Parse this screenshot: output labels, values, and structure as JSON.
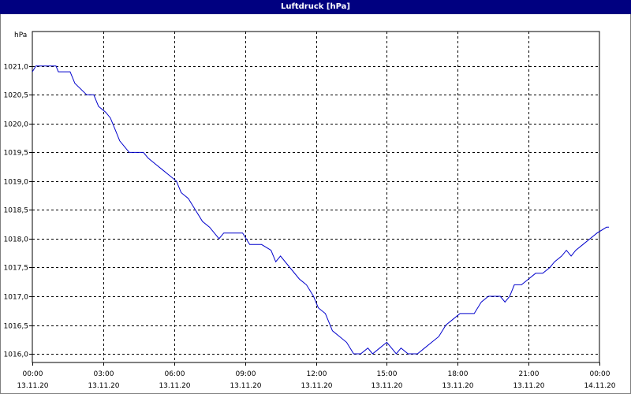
{
  "window": {
    "title": "Luftdruck [hPa]"
  },
  "chart_data": {
    "type": "line",
    "title": "Luftdruck [hPa]",
    "ylabel": "hPa",
    "xlabel": "",
    "ylim": [
      1015.85,
      1021.6
    ],
    "xlim": [
      0,
      24
    ],
    "grid": true,
    "y_ticks": [
      {
        "value": 1016.0,
        "label": "1016,0"
      },
      {
        "value": 1016.5,
        "label": "1016,5"
      },
      {
        "value": 1017.0,
        "label": "1017,0"
      },
      {
        "value": 1017.5,
        "label": "1017,5"
      },
      {
        "value": 1018.0,
        "label": "1018,0"
      },
      {
        "value": 1018.5,
        "label": "1018,5"
      },
      {
        "value": 1019.0,
        "label": "1019,0"
      },
      {
        "value": 1019.5,
        "label": "1019,5"
      },
      {
        "value": 1020.0,
        "label": "1020,0"
      },
      {
        "value": 1020.5,
        "label": "1020,5"
      },
      {
        "value": 1021.0,
        "label": "1021,0"
      }
    ],
    "x_ticks": [
      {
        "value": 0,
        "time": "00:00",
        "date": "13.11.20"
      },
      {
        "value": 3,
        "time": "03:00",
        "date": "13.11.20"
      },
      {
        "value": 6,
        "time": "06:00",
        "date": "13.11.20"
      },
      {
        "value": 9,
        "time": "09:00",
        "date": "13.11.20"
      },
      {
        "value": 12,
        "time": "12:00",
        "date": "13.11.20"
      },
      {
        "value": 15,
        "time": "15:00",
        "date": "13.11.20"
      },
      {
        "value": 18,
        "time": "18:00",
        "date": "13.11.20"
      },
      {
        "value": 21,
        "time": "21:00",
        "date": "13.11.20"
      },
      {
        "value": 24,
        "time": "00:00",
        "date": "14.11.20"
      }
    ],
    "series": [
      {
        "color": "#0000cc",
        "points": [
          [
            0.0,
            1020.9
          ],
          [
            0.15,
            1021.0
          ],
          [
            1.0,
            1021.0
          ],
          [
            1.1,
            1020.9
          ],
          [
            1.6,
            1020.9
          ],
          [
            1.8,
            1020.7
          ],
          [
            2.3,
            1020.5
          ],
          [
            2.6,
            1020.5
          ],
          [
            2.8,
            1020.3
          ],
          [
            3.1,
            1020.2
          ],
          [
            3.3,
            1020.1
          ],
          [
            3.5,
            1019.9
          ],
          [
            3.7,
            1019.7
          ],
          [
            3.9,
            1019.6
          ],
          [
            4.1,
            1019.5
          ],
          [
            4.7,
            1019.5
          ],
          [
            4.9,
            1019.4
          ],
          [
            5.2,
            1019.3
          ],
          [
            5.5,
            1019.2
          ],
          [
            5.8,
            1019.1
          ],
          [
            6.1,
            1019.0
          ],
          [
            6.3,
            1018.8
          ],
          [
            6.6,
            1018.7
          ],
          [
            6.9,
            1018.5
          ],
          [
            7.2,
            1018.3
          ],
          [
            7.5,
            1018.2
          ],
          [
            7.9,
            1018.0
          ],
          [
            8.1,
            1018.1
          ],
          [
            8.9,
            1018.1
          ],
          [
            9.2,
            1017.9
          ],
          [
            9.7,
            1017.9
          ],
          [
            10.1,
            1017.8
          ],
          [
            10.3,
            1017.6
          ],
          [
            10.5,
            1017.7
          ],
          [
            10.9,
            1017.5
          ],
          [
            11.3,
            1017.3
          ],
          [
            11.6,
            1017.2
          ],
          [
            11.9,
            1017.0
          ],
          [
            12.1,
            1016.8
          ],
          [
            12.4,
            1016.7
          ],
          [
            12.7,
            1016.4
          ],
          [
            13.0,
            1016.3
          ],
          [
            13.3,
            1016.2
          ],
          [
            13.6,
            1016.0
          ],
          [
            13.9,
            1016.0
          ],
          [
            14.2,
            1016.1
          ],
          [
            14.4,
            1016.0
          ],
          [
            14.7,
            1016.1
          ],
          [
            15.0,
            1016.2
          ],
          [
            15.2,
            1016.1
          ],
          [
            15.4,
            1016.0
          ],
          [
            15.6,
            1016.1
          ],
          [
            15.9,
            1016.0
          ],
          [
            16.3,
            1016.0
          ],
          [
            16.6,
            1016.1
          ],
          [
            16.9,
            1016.2
          ],
          [
            17.2,
            1016.3
          ],
          [
            17.5,
            1016.5
          ],
          [
            17.8,
            1016.6
          ],
          [
            18.1,
            1016.7
          ],
          [
            18.7,
            1016.7
          ],
          [
            19.0,
            1016.9
          ],
          [
            19.3,
            1017.0
          ],
          [
            19.8,
            1017.0
          ],
          [
            20.0,
            1016.9
          ],
          [
            20.2,
            1017.0
          ],
          [
            20.4,
            1017.2
          ],
          [
            20.7,
            1017.2
          ],
          [
            21.0,
            1017.3
          ],
          [
            21.3,
            1017.4
          ],
          [
            21.6,
            1017.4
          ],
          [
            21.9,
            1017.5
          ],
          [
            22.1,
            1017.6
          ],
          [
            22.4,
            1017.7
          ],
          [
            22.6,
            1017.8
          ],
          [
            22.8,
            1017.7
          ],
          [
            23.0,
            1017.8
          ],
          [
            23.3,
            1017.9
          ],
          [
            23.6,
            1018.0
          ],
          [
            23.9,
            1018.1
          ],
          [
            24.3,
            1018.2
          ],
          [
            24.4,
            1018.2
          ]
        ]
      }
    ]
  }
}
